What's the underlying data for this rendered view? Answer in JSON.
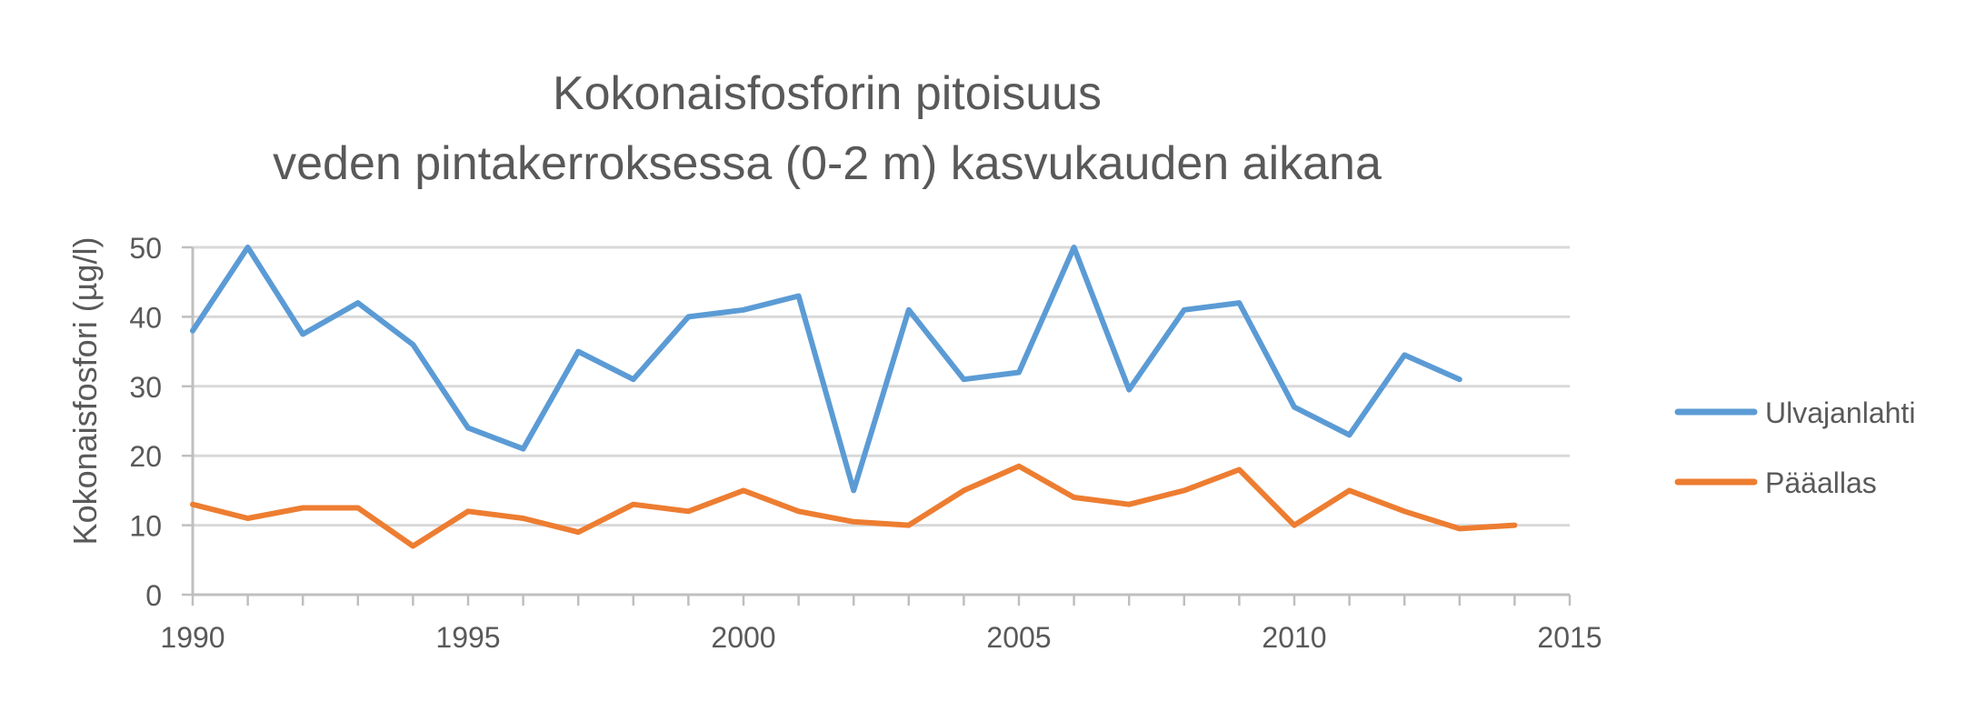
{
  "chart_data": {
    "type": "line",
    "title": [
      "Kokonaisfosforin pitoisuus",
      "veden pintakerroksessa (0-2 m) kasvukauden aikana"
    ],
    "ylabel": "Kokonaisfosfori (µg/l)",
    "xlabel": "",
    "xlim": [
      1990,
      2015
    ],
    "ylim": [
      0,
      50
    ],
    "xticks": [
      1990,
      1995,
      2000,
      2005,
      2010,
      2015
    ],
    "yticks": [
      0,
      10,
      20,
      30,
      40,
      50
    ],
    "grid": "horizontal",
    "legend": "right",
    "series": [
      {
        "name": "Ulvajanlahti",
        "color": "#5b9bd5",
        "x": [
          1990,
          1991,
          1992,
          1993,
          1994,
          1995,
          1996,
          1997,
          1998,
          1999,
          2000,
          2001,
          2002,
          2003,
          2004,
          2005,
          2006,
          2007,
          2008,
          2009,
          2010,
          2011,
          2012,
          2013
        ],
        "values": [
          38,
          50,
          37.5,
          42,
          36,
          24,
          21,
          35,
          31,
          40,
          41,
          43,
          15,
          41,
          31,
          32,
          50,
          29.5,
          41,
          42,
          27,
          23,
          34.5,
          31
        ]
      },
      {
        "name": "Pääallas",
        "color": "#ed7d31",
        "x": [
          1990,
          1991,
          1992,
          1993,
          1994,
          1995,
          1996,
          1997,
          1998,
          1999,
          2000,
          2001,
          2002,
          2003,
          2004,
          2005,
          2006,
          2007,
          2008,
          2009,
          2010,
          2011,
          2012,
          2013,
          2014
        ],
        "values": [
          13,
          11,
          12.5,
          12.5,
          7,
          12,
          11,
          9,
          13,
          12,
          15,
          12,
          10.5,
          10,
          15,
          18.5,
          14,
          13,
          15,
          18,
          10,
          15,
          12,
          9.5,
          10
        ]
      }
    ]
  }
}
